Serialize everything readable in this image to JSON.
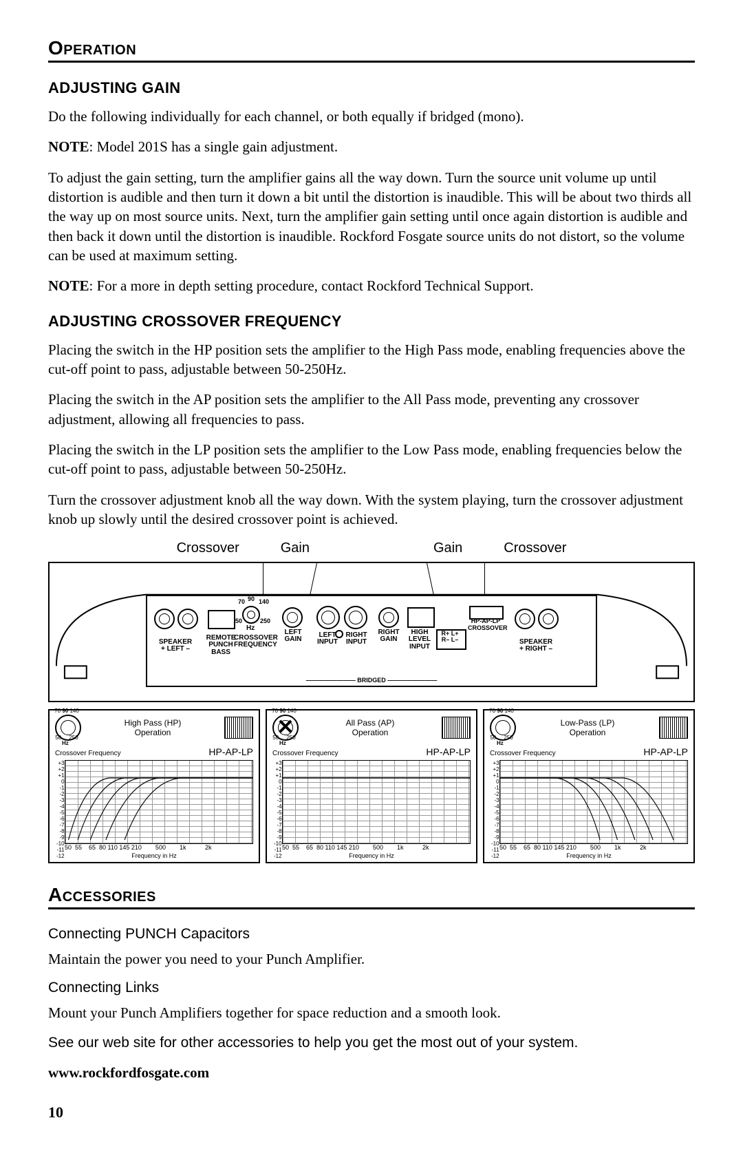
{
  "page_number": "10",
  "section1": {
    "heading": "Operation",
    "gain": {
      "heading": "ADJUSTING GAIN",
      "p1": "Do the following individually for each channel, or both equally if bridged (mono).",
      "note1_label": "NOTE",
      "note1_text": ": Model 201S has a single gain adjustment.",
      "p2": "To adjust the gain setting, turn the amplifier gains all the way down. Turn the source unit volume up until distortion is audible and then turn it down a bit until the distortion is inaudible. This will be about two thirds all the way up on most source units. Next, turn the amplifier gain setting until once again distortion is audible and then back it down until the distortion is inaudible. Rockford Fosgate source units do not distort, so the volume can be used at maximum setting.",
      "note2_label": "NOTE",
      "note2_text": ": For a more in depth setting procedure, contact Rockford Technical Support."
    },
    "xover": {
      "heading": "ADJUSTING CROSSOVER FREQUENCY",
      "p1": "Placing the switch in the HP position sets the amplifier to the High Pass mode, enabling frequencies above the cut-off point to pass, adjustable between 50-250Hz.",
      "p2": "Placing the switch in the AP position sets the amplifier to the All Pass mode, preventing any crossover adjustment, allowing all frequencies to pass.",
      "p3": "Placing the switch in the LP position sets the amplifier to the Low Pass mode, enabling frequencies below the cut-off point to pass, adjustable between 50-250Hz.",
      "p4": "Turn the crossover adjustment knob all the way down. With the system playing, turn the crossover adjustment knob up slowly until the desired crossover point is achieved."
    }
  },
  "figure": {
    "top_labels": {
      "l1": "Crossover",
      "l2": "Gain",
      "l3": "Gain",
      "l4": "Crossover"
    },
    "amp_labels": {
      "speaker_left": "SPEAKER\n+ LEFT –",
      "remote_punch_bass": "REMOTE\nPUNCH\nBASS",
      "crossover_freq": "CROSSOVER\nFREQUENCY",
      "left_gain": "LEFT\nGAIN",
      "left_input": "LEFT\nINPUT",
      "right_input": "RIGHT\nINPUT",
      "right_gain": "RIGHT\nGAIN",
      "high_level_input": "HIGH\nLEVEL\nINPUT",
      "rl_box": "R+ L+\nR– L–",
      "hp_ap_lp": "HP-AP-LP",
      "crossover": "CROSSOVER",
      "speaker_right": "SPEAKER\n+ RIGHT –",
      "bridged": "BRIDGED",
      "hz": "Hz",
      "dial_top": "90",
      "dial_l": "70",
      "dial_r": "140",
      "dial_bl": "50",
      "dial_br": "250"
    },
    "panels": [
      {
        "title": "High Pass (HP)\nOperation",
        "switch": "HP-AP-LP",
        "dial_crossed": false,
        "freq_label": "Crossover Frequency",
        "xaxis": "Frequency in Hz",
        "xticks": "50  55    65  80 110 145 210        500        1k           2k",
        "yticks": [
          "+3",
          "+2",
          "+1",
          "0",
          "-1",
          "-2",
          "-3",
          "-4",
          "-5",
          "-6",
          "-7",
          "-8",
          "-9",
          "-10",
          "-11",
          "-12"
        ],
        "curve_type": "highpass",
        "curve_color": "#000000"
      },
      {
        "title": "All Pass (AP)\nOperation",
        "switch": "HP-AP-LP",
        "dial_crossed": true,
        "freq_label": "Crossover Frequency",
        "xaxis": "Frequency in Hz",
        "xticks": "50  55    65  80 110 145 210        500        1k           2k",
        "yticks": [
          "+3",
          "+2",
          "+1",
          "0",
          "-1",
          "-2",
          "-3",
          "-4",
          "-5",
          "-6",
          "-7",
          "-8",
          "-9",
          "-10",
          "-11",
          "-12"
        ],
        "curve_type": "allpass",
        "curve_color": "#000000"
      },
      {
        "title": "Low-Pass (LP)\nOperation",
        "switch": "HP-AP-LP",
        "dial_crossed": false,
        "freq_label": "Crossover Frequency",
        "xaxis": "Frequency in Hz",
        "xticks": "50  55    65  80 110 145 210        500        1k           2k",
        "yticks": [
          "+3",
          "+2",
          "+1",
          "0",
          "-1",
          "-2",
          "-3",
          "-4",
          "-5",
          "-6",
          "-7",
          "-8",
          "-9",
          "-10",
          "-11",
          "-12"
        ],
        "curve_type": "lowpass",
        "curve_color": "#000000"
      }
    ]
  },
  "section2": {
    "heading": "Accessories",
    "item1_title": "Connecting PUNCH Capacitors",
    "item1_text": "Maintain the power you need to your Punch Amplifier.",
    "item2_title": "Connecting Links",
    "item2_text": "Mount your Punch Amplifiers together for space reduction and a smooth look.",
    "footer_text": "See our web site for other accessories to help you get the most out of your system.",
    "url": "www.rockfordfosgate.com"
  }
}
